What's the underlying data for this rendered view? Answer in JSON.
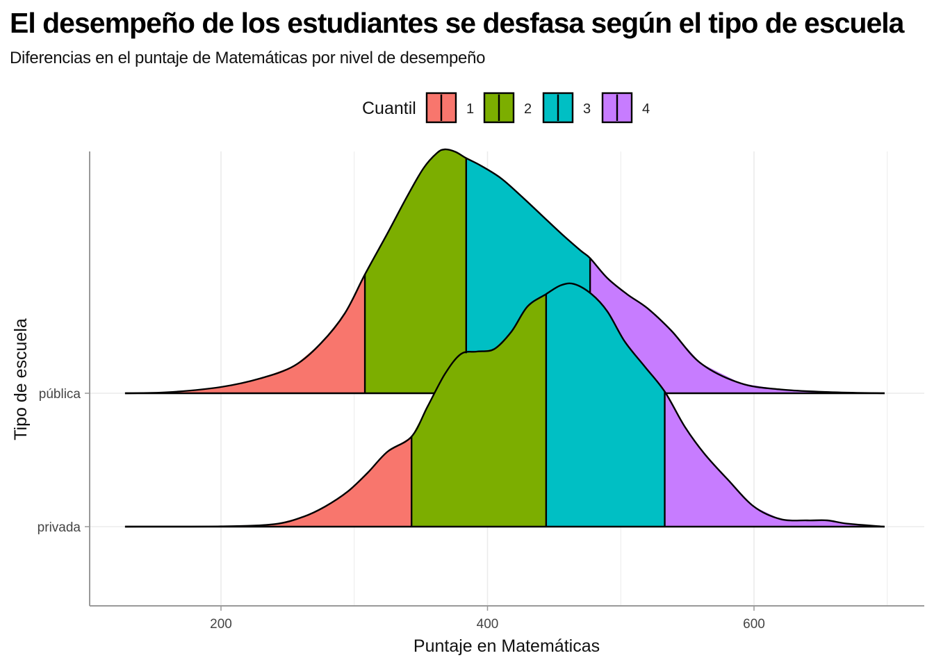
{
  "header": {
    "title": "El desempeño de los estudiantes se desfasa según el tipo de escuela",
    "subtitle": "Diferencias en el puntaje de Matemáticas por nivel de desempeño"
  },
  "chart_data": {
    "type": "area",
    "subtype": "ridgeline-density-with-quantile-fill",
    "title": "El desempeño de los estudiantes se desfasa según el tipo de escuela",
    "subtitle": "Diferencias en el puntaje de Matemáticas por nivel de desempeño",
    "xlabel": "Puntaje en Matemáticas",
    "ylabel": "Tipo de escuela",
    "xlim": [
      100,
      730
    ],
    "x_ticks": [
      200,
      400,
      600
    ],
    "categories": [
      "privada",
      "pública"
    ],
    "grid": true,
    "legend": {
      "title": "Cuantil",
      "position": "top",
      "entries": [
        {
          "label": "1",
          "color": "#F8766D"
        },
        {
          "label": "2",
          "color": "#7CAE00"
        },
        {
          "label": "3",
          "color": "#00BFC4"
        },
        {
          "label": "4",
          "color": "#C77CFF"
        }
      ]
    },
    "series": [
      {
        "name": "pública",
        "quantile_breaks": [
          308,
          384,
          477
        ],
        "density_relative": [
          [
            128,
            0.0
          ],
          [
            160,
            0.004
          ],
          [
            200,
            0.025
          ],
          [
            230,
            0.06
          ],
          [
            255,
            0.11
          ],
          [
            275,
            0.2
          ],
          [
            293,
            0.32
          ],
          [
            308,
            0.475
          ],
          [
            325,
            0.64
          ],
          [
            340,
            0.79
          ],
          [
            352,
            0.9
          ],
          [
            362,
            0.96
          ],
          [
            368,
            0.975
          ],
          [
            376,
            0.965
          ],
          [
            384,
            0.94
          ],
          [
            395,
            0.91
          ],
          [
            410,
            0.86
          ],
          [
            425,
            0.79
          ],
          [
            440,
            0.715
          ],
          [
            455,
            0.64
          ],
          [
            470,
            0.57
          ],
          [
            477,
            0.54
          ],
          [
            490,
            0.46
          ],
          [
            505,
            0.395
          ],
          [
            520,
            0.34
          ],
          [
            538,
            0.25
          ],
          [
            560,
            0.12
          ],
          [
            590,
            0.04
          ],
          [
            620,
            0.015
          ],
          [
            660,
            0.004
          ],
          [
            698,
            0.0
          ]
        ]
      },
      {
        "name": "privada",
        "quantile_breaks": [
          343,
          444,
          533
        ],
        "density_relative": [
          [
            128,
            0.0
          ],
          [
            200,
            0.001
          ],
          [
            240,
            0.01
          ],
          [
            262,
            0.04
          ],
          [
            278,
            0.08
          ],
          [
            295,
            0.14
          ],
          [
            310,
            0.215
          ],
          [
            325,
            0.3
          ],
          [
            343,
            0.36
          ],
          [
            355,
            0.48
          ],
          [
            368,
            0.61
          ],
          [
            380,
            0.69
          ],
          [
            392,
            0.7
          ],
          [
            405,
            0.71
          ],
          [
            418,
            0.78
          ],
          [
            430,
            0.88
          ],
          [
            444,
            0.93
          ],
          [
            455,
            0.965
          ],
          [
            465,
            0.97
          ],
          [
            478,
            0.93
          ],
          [
            490,
            0.86
          ],
          [
            503,
            0.74
          ],
          [
            518,
            0.64
          ],
          [
            533,
            0.54
          ],
          [
            548,
            0.4
          ],
          [
            563,
            0.29
          ],
          [
            580,
            0.19
          ],
          [
            600,
            0.08
          ],
          [
            620,
            0.03
          ],
          [
            640,
            0.025
          ],
          [
            655,
            0.025
          ],
          [
            670,
            0.012
          ],
          [
            698,
            0.0
          ]
        ]
      }
    ]
  }
}
